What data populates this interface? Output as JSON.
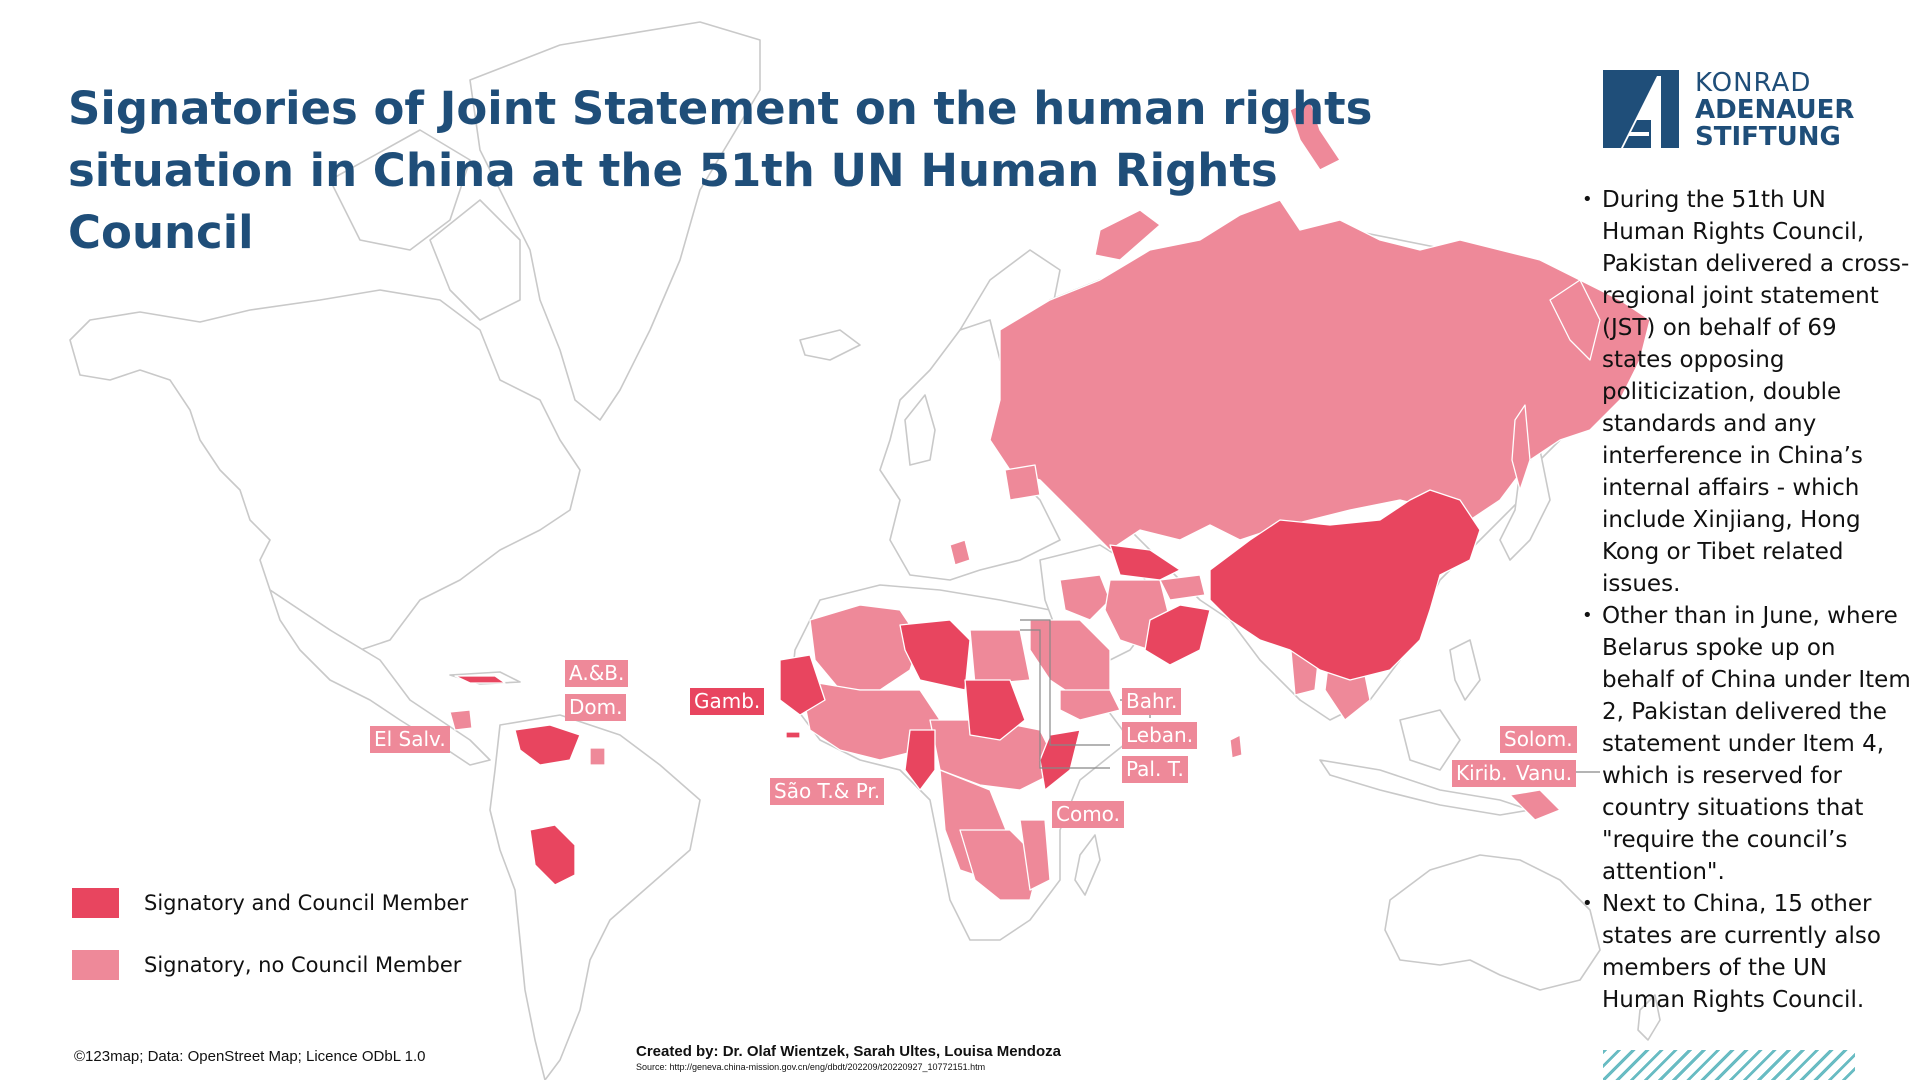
{
  "title": "Signatories of Joint Statement on the human rights situation in China at the 51th UN Human Rights Council",
  "colors": {
    "signatory_council": "#e8455f",
    "signatory_no_council": "#ee8999",
    "land": "#ffffff",
    "border": "#c9c9c9",
    "title": "#1f4e79",
    "accent_hatch": "#69bcc3"
  },
  "logo": {
    "line1": "KONRAD",
    "line2": "ADENAUER",
    "line3": "STIFTUNG"
  },
  "bullets": [
    "During the 51th UN Human Rights Council, Pakistan delivered a cross-regional joint statement (JST) on behalf of 69 states opposing politicization, double standards and any interference in China’s internal affairs - which include Xinjiang, Hong Kong or Tibet related issues.",
    "Other than in June, where Belarus spoke up on behalf of China under Item 2, Pakistan delivered the statement under Item 4, which is reserved for country situations that \"require the council’s attention\".",
    "Next to China, 15 other states are currently also members of the UN Human Rights Council."
  ],
  "map_labels": {
    "ab": "A.&B.",
    "dom": "Dom.",
    "elsalv": "El Salv.",
    "gamb": "Gamb.",
    "saotome": "São T.& Pr.",
    "bahr": "Bahr.",
    "leban": "Leban.",
    "palt": "Pal. T.",
    "como": "Como.",
    "solom": "Solom.",
    "kirib": "Kirib.",
    "vanu": "Vanu."
  },
  "legend": [
    {
      "label": "Signatory and Council Member",
      "color": "#e8455f"
    },
    {
      "label": "Signatory, no Council Member",
      "color": "#ee8999"
    }
  ],
  "footer": {
    "copyright": "©123map; Data: OpenStreet Map; Licence ODbL 1.0",
    "credits": "Created by: Dr. Olaf Wientzek, Sarah Ultes, Louisa Mendoza",
    "source": "Source: http://geneva.china-mission.gov.cn/eng/dbdt/202209/t20220927_10772151.htm"
  }
}
